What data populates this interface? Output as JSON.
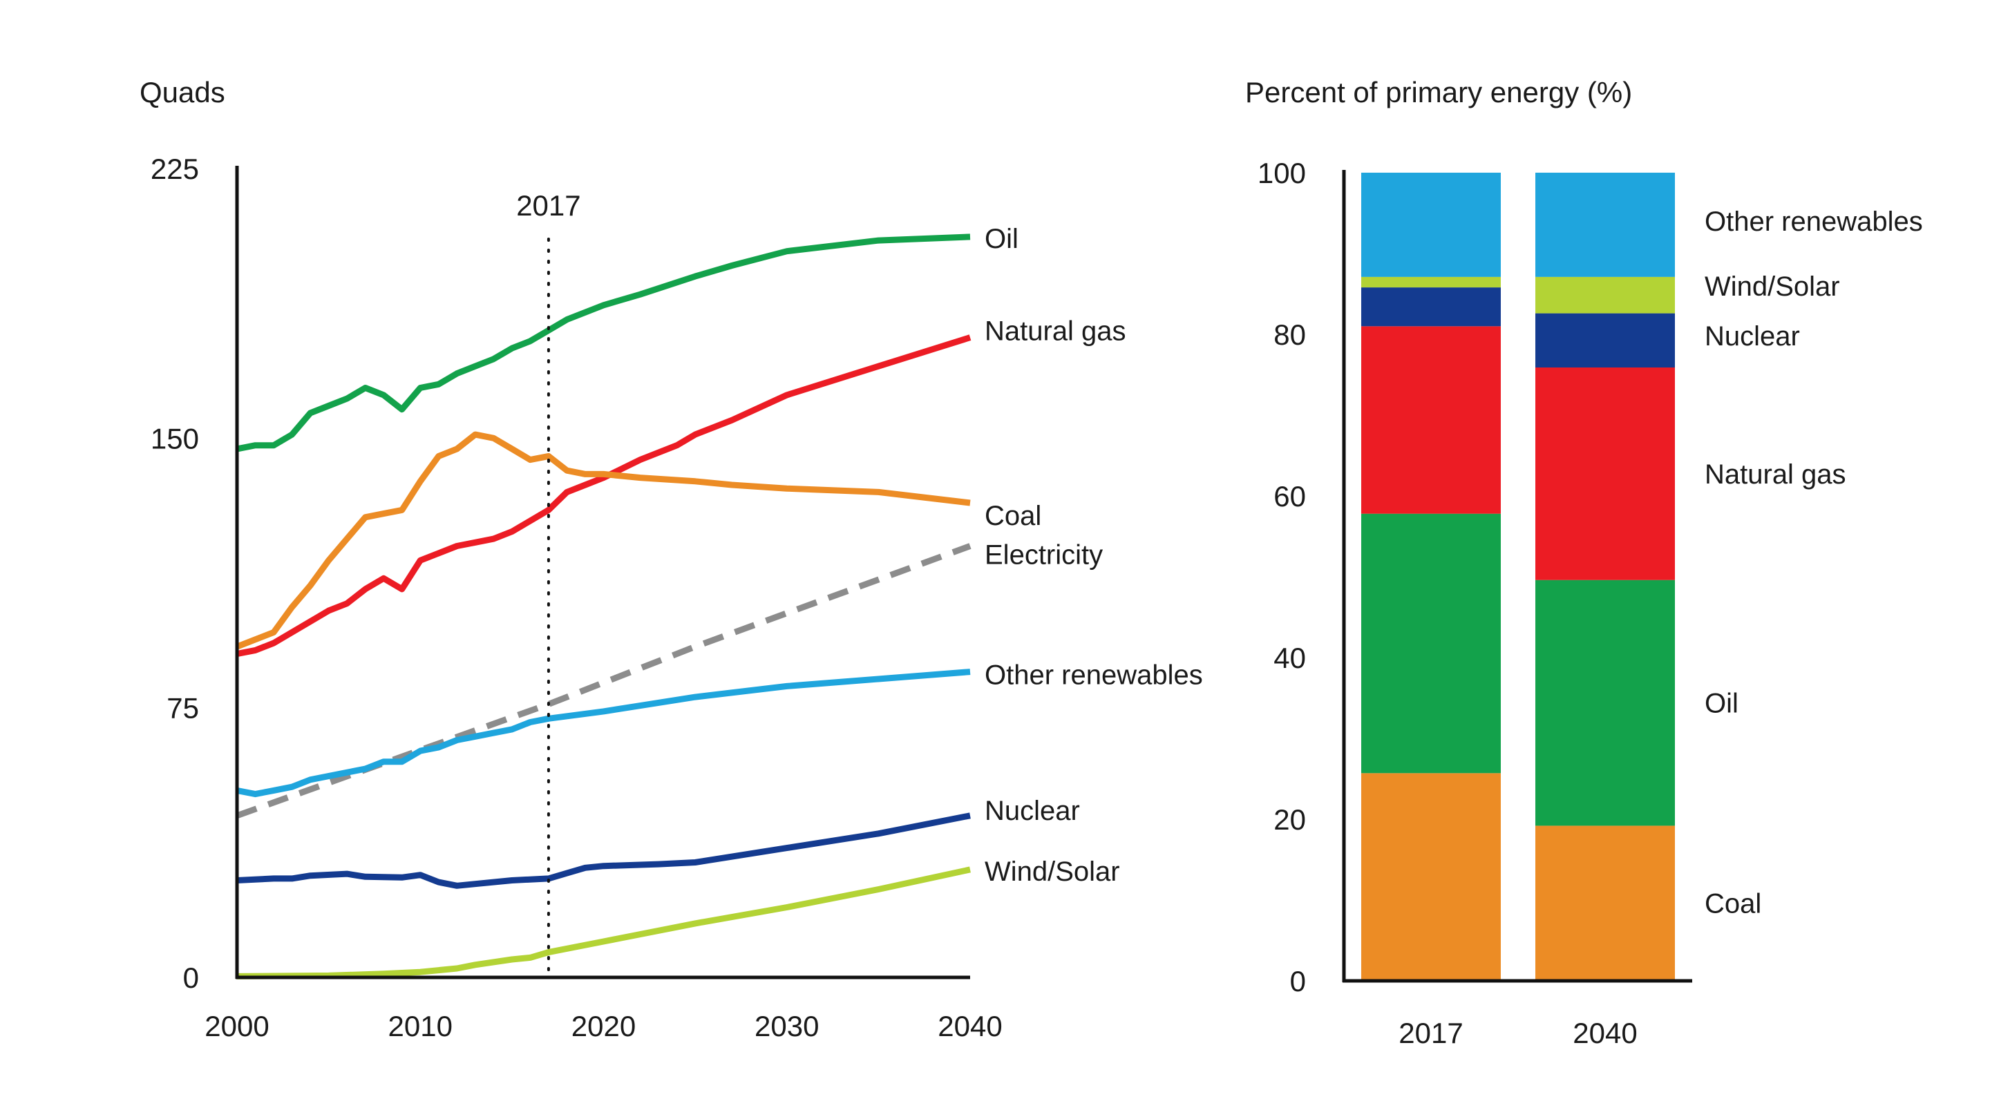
{
  "chart_data": [
    {
      "type": "line",
      "ylabel": "Quads",
      "ylim": [
        0,
        225
      ],
      "yticks": [
        0,
        75,
        150,
        225
      ],
      "xlim": [
        2000,
        2040
      ],
      "xticks": [
        2000,
        2010,
        2020,
        2030,
        2040
      ],
      "marker": {
        "x": 2017,
        "label": "2017"
      },
      "series": [
        {
          "name": "Oil",
          "color": "#13a24b",
          "dashed": false,
          "points": [
            [
              2000,
              147
            ],
            [
              2001,
              148
            ],
            [
              2002,
              148
            ],
            [
              2003,
              151
            ],
            [
              2004,
              157
            ],
            [
              2005,
              159
            ],
            [
              2006,
              161
            ],
            [
              2007,
              164
            ],
            [
              2008,
              162
            ],
            [
              2009,
              158
            ],
            [
              2010,
              164
            ],
            [
              2011,
              165
            ],
            [
              2012,
              168
            ],
            [
              2013,
              170
            ],
            [
              2014,
              172
            ],
            [
              2015,
              175
            ],
            [
              2016,
              177
            ],
            [
              2017,
              180
            ],
            [
              2018,
              183
            ],
            [
              2019,
              185
            ],
            [
              2020,
              187
            ],
            [
              2022,
              190
            ],
            [
              2025,
              195
            ],
            [
              2027,
              198
            ],
            [
              2030,
              202
            ],
            [
              2035,
              205
            ],
            [
              2040,
              206
            ]
          ]
        },
        {
          "name": "Natural gas",
          "color": "#ec1c24",
          "dashed": false,
          "points": [
            [
              2000,
              90
            ],
            [
              2001,
              91
            ],
            [
              2002,
              93
            ],
            [
              2003,
              96
            ],
            [
              2004,
              99
            ],
            [
              2005,
              102
            ],
            [
              2006,
              104
            ],
            [
              2007,
              108
            ],
            [
              2008,
              111
            ],
            [
              2009,
              108
            ],
            [
              2010,
              116
            ],
            [
              2011,
              118
            ],
            [
              2012,
              120
            ],
            [
              2013,
              121
            ],
            [
              2014,
              122
            ],
            [
              2015,
              124
            ],
            [
              2016,
              127
            ],
            [
              2017,
              130
            ],
            [
              2018,
              135
            ],
            [
              2019,
              137
            ],
            [
              2020,
              139
            ],
            [
              2022,
              144
            ],
            [
              2024,
              148
            ],
            [
              2025,
              151
            ],
            [
              2027,
              155
            ],
            [
              2030,
              162
            ],
            [
              2035,
              170
            ],
            [
              2040,
              178
            ]
          ]
        },
        {
          "name": "Coal",
          "color": "#ec8c25",
          "dashed": false,
          "points": [
            [
              2000,
              92
            ],
            [
              2001,
              94
            ],
            [
              2002,
              96
            ],
            [
              2003,
              103
            ],
            [
              2004,
              109
            ],
            [
              2005,
              116
            ],
            [
              2006,
              122
            ],
            [
              2007,
              128
            ],
            [
              2008,
              129
            ],
            [
              2009,
              130
            ],
            [
              2010,
              138
            ],
            [
              2011,
              145
            ],
            [
              2012,
              147
            ],
            [
              2013,
              151
            ],
            [
              2014,
              150
            ],
            [
              2015,
              147
            ],
            [
              2016,
              144
            ],
            [
              2017,
              145
            ],
            [
              2018,
              141
            ],
            [
              2019,
              140
            ],
            [
              2020,
              140
            ],
            [
              2022,
              139
            ],
            [
              2025,
              138
            ],
            [
              2027,
              137
            ],
            [
              2030,
              136
            ],
            [
              2035,
              135
            ],
            [
              2040,
              132
            ]
          ]
        },
        {
          "name": "Electricity",
          "color": "#8c8c8c",
          "dashed": true,
          "points": [
            [
              2000,
              45
            ],
            [
              2017,
              76
            ],
            [
              2025,
              92
            ],
            [
              2040,
              120
            ]
          ]
        },
        {
          "name": "Other renewables",
          "color": "#1fa5dd",
          "dashed": false,
          "points": [
            [
              2000,
              52
            ],
            [
              2001,
              51
            ],
            [
              2002,
              52
            ],
            [
              2003,
              53
            ],
            [
              2004,
              55
            ],
            [
              2005,
              56
            ],
            [
              2006,
              57
            ],
            [
              2007,
              58
            ],
            [
              2008,
              60
            ],
            [
              2009,
              60
            ],
            [
              2010,
              63
            ],
            [
              2011,
              64
            ],
            [
              2012,
              66
            ],
            [
              2013,
              67
            ],
            [
              2014,
              68
            ],
            [
              2015,
              69
            ],
            [
              2016,
              71
            ],
            [
              2017,
              72
            ],
            [
              2020,
              74
            ],
            [
              2025,
              78
            ],
            [
              2030,
              81
            ],
            [
              2035,
              83
            ],
            [
              2040,
              85
            ]
          ]
        },
        {
          "name": "Nuclear",
          "color": "#143b90",
          "dashed": false,
          "points": [
            [
              2000,
              27
            ],
            [
              2002,
              27.5
            ],
            [
              2003,
              27.5
            ],
            [
              2004,
              28.3
            ],
            [
              2006,
              28.8
            ],
            [
              2007,
              28
            ],
            [
              2009,
              27.8
            ],
            [
              2010,
              28.5
            ],
            [
              2011,
              26.5
            ],
            [
              2012,
              25.5
            ],
            [
              2013,
              26
            ],
            [
              2015,
              27
            ],
            [
              2017,
              27.5
            ],
            [
              2018,
              29
            ],
            [
              2019,
              30.5
            ],
            [
              2020,
              31
            ],
            [
              2023,
              31.5
            ],
            [
              2025,
              32
            ],
            [
              2030,
              36
            ],
            [
              2035,
              40
            ],
            [
              2040,
              45
            ]
          ]
        },
        {
          "name": "Wind/Solar",
          "color": "#b3d335",
          "dashed": false,
          "points": [
            [
              2000,
              0.3
            ],
            [
              2005,
              0.5
            ],
            [
              2008,
              1
            ],
            [
              2010,
              1.5
            ],
            [
              2012,
              2.5
            ],
            [
              2013,
              3.5
            ],
            [
              2015,
              5
            ],
            [
              2016,
              5.5
            ],
            [
              2017,
              7
            ],
            [
              2020,
              10
            ],
            [
              2025,
              15
            ],
            [
              2030,
              19.5
            ],
            [
              2035,
              24.5
            ],
            [
              2040,
              30
            ]
          ]
        }
      ]
    },
    {
      "type": "bar",
      "stacked": true,
      "ylabel": "Percent of primary energy (%)",
      "ylim": [
        0,
        100
      ],
      "yticks": [
        0,
        20,
        40,
        60,
        80,
        100
      ],
      "categories": [
        "2017",
        "2040"
      ],
      "series": [
        {
          "name": "Coal",
          "color": "#ec8c25",
          "values": [
            25.7,
            19.2
          ]
        },
        {
          "name": "Oil",
          "color": "#13a24b",
          "values": [
            32.1,
            30.4
          ]
        },
        {
          "name": "Natural gas",
          "color": "#ec1c24",
          "values": [
            23.2,
            26.3
          ]
        },
        {
          "name": "Nuclear",
          "color": "#143b90",
          "values": [
            4.8,
            6.7
          ]
        },
        {
          "name": "Wind/Solar",
          "color": "#b3d335",
          "values": [
            1.3,
            4.5
          ]
        },
        {
          "name": "Other renewables",
          "color": "#1fa5dd",
          "values": [
            12.9,
            12.9
          ]
        }
      ]
    }
  ]
}
